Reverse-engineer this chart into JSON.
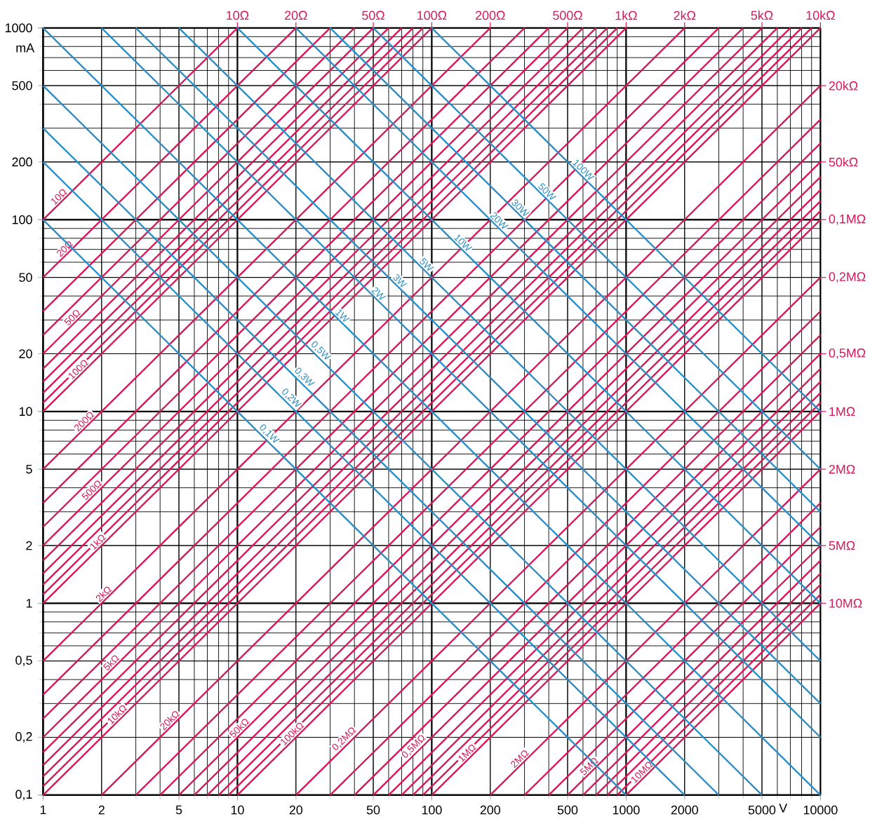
{
  "chart_data": {
    "type": "line",
    "log": "xy",
    "grid": true,
    "xlabel": "V",
    "ylabel": "mA",
    "xlim": [
      1,
      10000
    ],
    "ylim": [
      0.1,
      1000
    ],
    "xticks": [
      1,
      2,
      5,
      10,
      20,
      50,
      100,
      200,
      500,
      1000,
      2000,
      5000,
      10000
    ],
    "yticks": [
      {
        "value": 0.1,
        "label": "0,1"
      },
      {
        "value": 0.2,
        "label": "0,2"
      },
      {
        "value": 0.5,
        "label": "0,5"
      },
      1,
      2,
      5,
      10,
      20,
      50,
      100,
      200,
      500,
      1000
    ],
    "annotations": [
      {
        "text": "10Ω",
        "x": 10,
        "y": 1000
      },
      {
        "text": "20Ω",
        "x": 20,
        "y": 1000
      },
      {
        "text": "50Ω",
        "x": 50,
        "y": 1000
      },
      {
        "text": "100Ω",
        "x": 100,
        "y": 1000
      },
      {
        "text": "200Ω",
        "x": 200,
        "y": 1000
      },
      {
        "text": "500Ω",
        "x": 500,
        "y": 1000
      },
      {
        "text": "1kΩ",
        "x": 1000,
        "y": 1000
      },
      {
        "text": "2kΩ",
        "x": 2000,
        "y": 1000
      },
      {
        "text": "5kΩ",
        "x": 5000,
        "y": 1000
      },
      {
        "text": "10kΩ",
        "x": 10000,
        "y": 1000
      },
      {
        "text": "20kΩ",
        "x": 10000,
        "y": 500
      },
      {
        "text": "50kΩ",
        "x": 10000,
        "y": 200
      },
      {
        "text": "0,1MΩ",
        "x": 10000,
        "y": 100
      },
      {
        "text": "0,2MΩ",
        "x": 10000,
        "y": 50
      },
      {
        "text": "0,5MΩ",
        "x": 10000,
        "y": 20
      },
      {
        "text": "1MΩ",
        "x": 10000,
        "y": 10
      },
      {
        "text": "2MΩ",
        "x": 10000,
        "y": 5
      },
      {
        "text": "5MΩ",
        "x": 10000,
        "y": 2
      },
      {
        "text": "10MΩ",
        "x": 10000,
        "y": 1
      }
    ],
    "series": [
      {
        "name": "10Ω",
        "color": "#d6185a",
        "x": [
          1,
          10
        ],
        "values": [
          100,
          1000
        ]
      },
      {
        "name": "20Ω",
        "color": "#d6185a",
        "x": [
          1,
          20
        ],
        "values": [
          50,
          1000
        ]
      },
      {
        "color": "#d6185a",
        "x": [
          1,
          30
        ],
        "values": [
          33.3,
          1000
        ]
      },
      {
        "color": "#d6185a",
        "x": [
          1,
          40
        ],
        "values": [
          25,
          1000
        ]
      },
      {
        "name": "50Ω",
        "color": "#d6185a",
        "x": [
          1,
          50
        ],
        "values": [
          20,
          1000
        ]
      },
      {
        "color": "#d6185a",
        "x": [
          1,
          60
        ],
        "values": [
          16.7,
          1000
        ]
      },
      {
        "color": "#d6185a",
        "x": [
          1,
          70
        ],
        "values": [
          14.3,
          1000
        ]
      },
      {
        "color": "#d6185a",
        "x": [
          1,
          80
        ],
        "values": [
          12.5,
          1000
        ]
      },
      {
        "color": "#d6185a",
        "x": [
          1,
          90
        ],
        "values": [
          11.1,
          1000
        ]
      },
      {
        "name": "100Ω",
        "color": "#d6185a",
        "x": [
          1,
          100
        ],
        "values": [
          10,
          1000
        ]
      },
      {
        "name": "200Ω",
        "color": "#d6185a",
        "x": [
          1,
          200
        ],
        "values": [
          5,
          1000
        ]
      },
      {
        "color": "#d6185a",
        "x": [
          1,
          300
        ],
        "values": [
          3.33,
          1000
        ]
      },
      {
        "color": "#d6185a",
        "x": [
          1,
          400
        ],
        "values": [
          2.5,
          1000
        ]
      },
      {
        "name": "500Ω",
        "color": "#d6185a",
        "x": [
          1,
          500
        ],
        "values": [
          2,
          1000
        ]
      },
      {
        "color": "#d6185a",
        "x": [
          1,
          600
        ],
        "values": [
          1.67,
          1000
        ]
      },
      {
        "color": "#d6185a",
        "x": [
          1,
          700
        ],
        "values": [
          1.43,
          1000
        ]
      },
      {
        "color": "#d6185a",
        "x": [
          1,
          800
        ],
        "values": [
          1.25,
          1000
        ]
      },
      {
        "color": "#d6185a",
        "x": [
          1,
          900
        ],
        "values": [
          1.11,
          1000
        ]
      },
      {
        "name": "1kΩ",
        "color": "#d6185a",
        "x": [
          1,
          1000
        ],
        "values": [
          1,
          1000
        ]
      },
      {
        "name": "2kΩ",
        "color": "#d6185a",
        "x": [
          1,
          2000
        ],
        "values": [
          0.5,
          1000
        ]
      },
      {
        "color": "#d6185a",
        "x": [
          1,
          3000
        ],
        "values": [
          0.333,
          1000
        ]
      },
      {
        "color": "#d6185a",
        "x": [
          1,
          4000
        ],
        "values": [
          0.25,
          1000
        ]
      },
      {
        "name": "5kΩ",
        "color": "#d6185a",
        "x": [
          1,
          5000
        ],
        "values": [
          0.2,
          1000
        ]
      },
      {
        "color": "#d6185a",
        "x": [
          1,
          6000
        ],
        "values": [
          0.167,
          1000
        ]
      },
      {
        "color": "#d6185a",
        "x": [
          1,
          7000
        ],
        "values": [
          0.143,
          1000
        ]
      },
      {
        "color": "#d6185a",
        "x": [
          1,
          8000
        ],
        "values": [
          0.125,
          1000
        ]
      },
      {
        "color": "#d6185a",
        "x": [
          1,
          9000
        ],
        "values": [
          0.111,
          1000
        ]
      },
      {
        "name": "10kΩ",
        "color": "#d6185a",
        "x": [
          1,
          10000
        ],
        "values": [
          0.1,
          1000
        ]
      },
      {
        "name": "20kΩ",
        "color": "#d6185a",
        "x": [
          2,
          10000
        ],
        "values": [
          0.1,
          500
        ]
      },
      {
        "color": "#d6185a",
        "x": [
          3,
          10000
        ],
        "values": [
          0.1,
          333
        ]
      },
      {
        "color": "#d6185a",
        "x": [
          4,
          10000
        ],
        "values": [
          0.1,
          250
        ]
      },
      {
        "name": "50kΩ",
        "color": "#d6185a",
        "x": [
          5,
          10000
        ],
        "values": [
          0.1,
          200
        ]
      },
      {
        "color": "#d6185a",
        "x": [
          6,
          10000
        ],
        "values": [
          0.1,
          167
        ]
      },
      {
        "color": "#d6185a",
        "x": [
          7,
          10000
        ],
        "values": [
          0.1,
          143
        ]
      },
      {
        "color": "#d6185a",
        "x": [
          8,
          10000
        ],
        "values": [
          0.1,
          125
        ]
      },
      {
        "color": "#d6185a",
        "x": [
          9,
          10000
        ],
        "values": [
          0.1,
          111
        ]
      },
      {
        "name": "100kΩ",
        "color": "#d6185a",
        "x": [
          10,
          10000
        ],
        "values": [
          0.1,
          100
        ]
      },
      {
        "name": "0,2MΩ",
        "color": "#d6185a",
        "x": [
          20,
          10000
        ],
        "values": [
          0.1,
          50
        ]
      },
      {
        "color": "#d6185a",
        "x": [
          30,
          10000
        ],
        "values": [
          0.1,
          33.3
        ]
      },
      {
        "color": "#d6185a",
        "x": [
          40,
          10000
        ],
        "values": [
          0.1,
          25
        ]
      },
      {
        "name": "0,5MΩ",
        "color": "#d6185a",
        "x": [
          50,
          10000
        ],
        "values": [
          0.1,
          20
        ]
      },
      {
        "color": "#d6185a",
        "x": [
          60,
          10000
        ],
        "values": [
          0.1,
          16.7
        ]
      },
      {
        "color": "#d6185a",
        "x": [
          70,
          10000
        ],
        "values": [
          0.1,
          14.3
        ]
      },
      {
        "color": "#d6185a",
        "x": [
          80,
          10000
        ],
        "values": [
          0.1,
          12.5
        ]
      },
      {
        "color": "#d6185a",
        "x": [
          90,
          10000
        ],
        "values": [
          0.1,
          11.1
        ]
      },
      {
        "name": "1MΩ",
        "color": "#d6185a",
        "x": [
          100,
          10000
        ],
        "values": [
          0.1,
          10
        ]
      },
      {
        "name": "2MΩ",
        "color": "#d6185a",
        "x": [
          200,
          10000
        ],
        "values": [
          0.1,
          5
        ]
      },
      {
        "color": "#d6185a",
        "x": [
          300,
          10000
        ],
        "values": [
          0.1,
          3.33
        ]
      },
      {
        "color": "#d6185a",
        "x": [
          400,
          10000
        ],
        "values": [
          0.1,
          2.5
        ]
      },
      {
        "name": "5MΩ",
        "color": "#d6185a",
        "x": [
          500,
          10000
        ],
        "values": [
          0.1,
          2
        ]
      },
      {
        "color": "#d6185a",
        "x": [
          600,
          10000
        ],
        "values": [
          0.1,
          1.67
        ]
      },
      {
        "color": "#d6185a",
        "x": [
          700,
          10000
        ],
        "values": [
          0.1,
          1.43
        ]
      },
      {
        "color": "#d6185a",
        "x": [
          800,
          10000
        ],
        "values": [
          0.1,
          1.25
        ]
      },
      {
        "color": "#d6185a",
        "x": [
          900,
          10000
        ],
        "values": [
          0.1,
          1.11
        ]
      },
      {
        "name": "10MΩ",
        "color": "#d6185a",
        "x": [
          1000,
          10000
        ],
        "values": [
          0.1,
          1
        ]
      },
      {
        "name": "0,1W",
        "color": "#2b8ec6",
        "x": [
          1,
          1000
        ],
        "values": [
          100,
          0.1
        ]
      },
      {
        "name": "0,2W",
        "color": "#2b8ec6",
        "x": [
          1,
          2000
        ],
        "values": [
          200,
          0.1
        ]
      },
      {
        "name": "0,3W",
        "color": "#2b8ec6",
        "x": [
          1,
          3000
        ],
        "values": [
          300,
          0.1
        ]
      },
      {
        "name": "0,5W",
        "color": "#2b8ec6",
        "x": [
          1,
          5000
        ],
        "values": [
          500,
          0.1
        ]
      },
      {
        "name": "1W",
        "color": "#2b8ec6",
        "x": [
          1,
          10000
        ],
        "values": [
          1000,
          0.1
        ]
      },
      {
        "name": "2W",
        "color": "#2b8ec6",
        "x": [
          2,
          10000
        ],
        "values": [
          1000,
          0.2
        ]
      },
      {
        "name": "3W",
        "color": "#2b8ec6",
        "x": [
          3,
          10000
        ],
        "values": [
          1000,
          0.3
        ]
      },
      {
        "name": "5W",
        "color": "#2b8ec6",
        "x": [
          5,
          10000
        ],
        "values": [
          1000,
          0.5
        ]
      },
      {
        "name": "10W",
        "color": "#2b8ec6",
        "x": [
          10,
          10000
        ],
        "values": [
          1000,
          1
        ]
      },
      {
        "name": "20W",
        "color": "#2b8ec6",
        "x": [
          20,
          10000
        ],
        "values": [
          1000,
          2
        ]
      },
      {
        "name": "30W",
        "color": "#2b8ec6",
        "x": [
          30,
          10000
        ],
        "values": [
          1000,
          3
        ]
      },
      {
        "name": "50W",
        "color": "#2b8ec6",
        "x": [
          50,
          10000
        ],
        "values": [
          1000,
          5
        ]
      },
      {
        "name": "100W",
        "color": "#2b8ec6",
        "x": [
          100,
          10000
        ],
        "values": [
          1000,
          10
        ]
      }
    ]
  }
}
